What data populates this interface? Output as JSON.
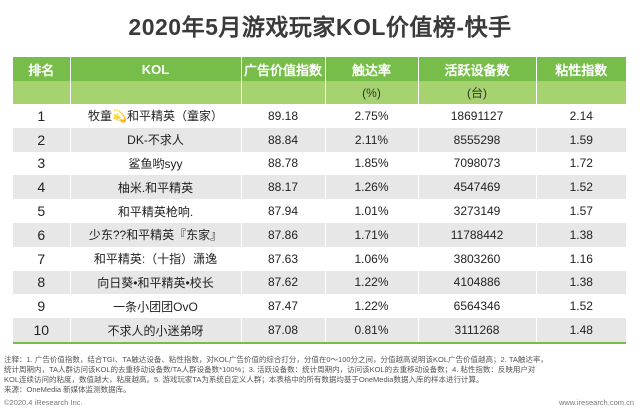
{
  "title": "2020年5月游戏玩家KOL价值榜-快手",
  "chart_data": {
    "type": "table",
    "columns": [
      "排名",
      "KOL",
      "广告价值指数",
      "触达率",
      "活跃设备数",
      "粘性指数"
    ],
    "units": [
      "",
      "",
      "",
      "(%)",
      "(台)",
      ""
    ],
    "rows": [
      {
        "rank": "1",
        "kol": "牧童💫和平精英（童家）",
        "ad_index": "89.18",
        "reach": "2.75%",
        "devices": "18691127",
        "stickiness": "2.14"
      },
      {
        "rank": "2",
        "kol": "DK-不求人",
        "ad_index": "88.84",
        "reach": "2.11%",
        "devices": "8555298",
        "stickiness": "1.59"
      },
      {
        "rank": "3",
        "kol": "鲨鱼哟syy",
        "ad_index": "88.78",
        "reach": "1.85%",
        "devices": "7098073",
        "stickiness": "1.72"
      },
      {
        "rank": "4",
        "kol": "柚米.和平精英",
        "ad_index": "88.17",
        "reach": "1.26%",
        "devices": "4547469",
        "stickiness": "1.52"
      },
      {
        "rank": "5",
        "kol": "和平精英枪响.",
        "ad_index": "87.94",
        "reach": "1.01%",
        "devices": "3273149",
        "stickiness": "1.57"
      },
      {
        "rank": "6",
        "kol": "少东??和平精英『东家』",
        "ad_index": "87.86",
        "reach": "1.71%",
        "devices": "11788442",
        "stickiness": "1.38"
      },
      {
        "rank": "7",
        "kol": "和平精英:（十指）潇逸",
        "ad_index": "87.63",
        "reach": "1.06%",
        "devices": "3803260",
        "stickiness": "1.16"
      },
      {
        "rank": "8",
        "kol": "向日葵•和平精英•校长",
        "ad_index": "87.62",
        "reach": "1.22%",
        "devices": "4104886",
        "stickiness": "1.38"
      },
      {
        "rank": "9",
        "kol": "一条小团团OvO",
        "ad_index": "87.47",
        "reach": "1.22%",
        "devices": "6564346",
        "stickiness": "1.52"
      },
      {
        "rank": "10",
        "kol": "不求人的小迷弟呀",
        "ad_index": "87.08",
        "reach": "0.81%",
        "devices": "3111268",
        "stickiness": "1.48"
      }
    ]
  },
  "notes": {
    "line1": "注释：1. 广告价值指数，结合TGI、TA触达设备、粘性指数，对KOL广告价值的综合打分，分值在0～100分之间，分值越高说明该KOL广告价值越高；2. TA触达率，",
    "line2": "统计周期内，TA人群访问该KOL的去重移动设备数/TA人群设备数*100%；3. 活跃设备数：统计周期内，访问该KOL的去重移动设备数；4. 粘性指数：反映用户对",
    "line3": "KOL连续访问的粘度，数值越大，粘度越高。5. 游戏玩家TA为系统自定义人群；本表格中的所有数据均基于OneMedia数据入库的样本进行计算。",
    "line4": "来源：OneMedia 新媒体监测数据库。"
  },
  "footer": {
    "left": "©2020.4 iResearch Inc.",
    "right": "www.iresearch.com.cn"
  }
}
